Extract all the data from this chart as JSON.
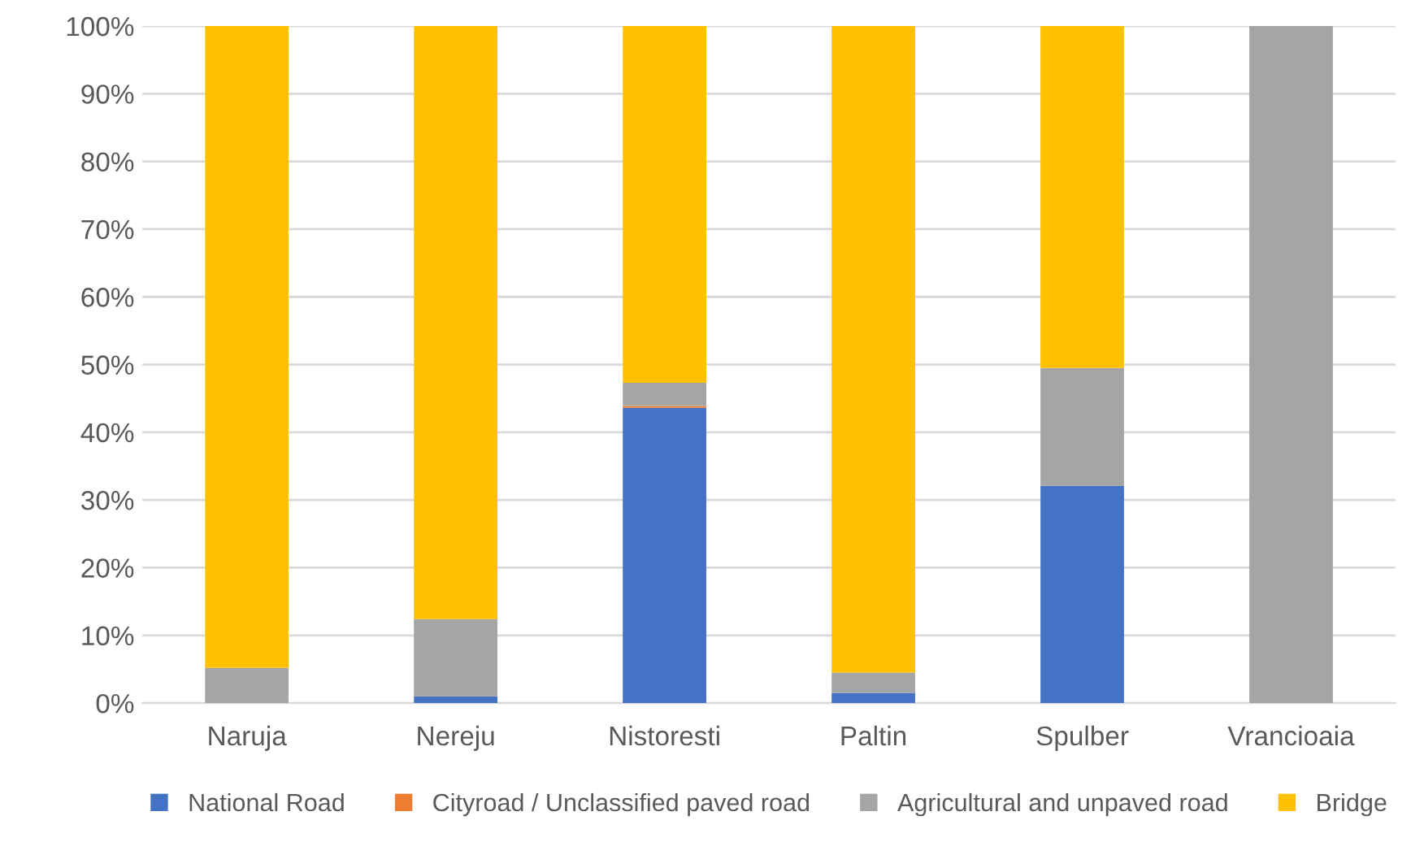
{
  "chart_data": {
    "type": "bar",
    "stacked": true,
    "categories": [
      "Naruja",
      "Nereju",
      "Nistoresti",
      "Paltin",
      "Spulber",
      "Vrancioaia"
    ],
    "series": [
      {
        "name": "National Road",
        "color": "#4472c4",
        "values": [
          0,
          1.0,
          43.6,
          1.5,
          32.1,
          0
        ]
      },
      {
        "name": "Cityroad / Unclassified paved road",
        "color": "#ed7d31",
        "values": [
          0,
          0,
          0.3,
          0,
          0,
          0
        ]
      },
      {
        "name": "Agricultural and unpaved road",
        "color": "#a5a5a5",
        "values": [
          5.2,
          11.4,
          3.4,
          3.0,
          17.4,
          100
        ]
      },
      {
        "name": "Bridge",
        "color": "#ffc000",
        "values": [
          94.8,
          87.6,
          52.7,
          95.5,
          50.5,
          0
        ]
      }
    ],
    "ylim": [
      0,
      100
    ],
    "yticks": [
      {
        "value": 0,
        "label": "0%"
      },
      {
        "value": 10,
        "label": "10%"
      },
      {
        "value": 20,
        "label": "20%"
      },
      {
        "value": 30,
        "label": "30%"
      },
      {
        "value": 40,
        "label": "40%"
      },
      {
        "value": 50,
        "label": "50%"
      },
      {
        "value": 60,
        "label": "60%"
      },
      {
        "value": 70,
        "label": "70%"
      },
      {
        "value": 80,
        "label": "80%"
      },
      {
        "value": 90,
        "label": "90%"
      },
      {
        "value": 100,
        "label": "100%"
      }
    ],
    "grid": "y",
    "legend": "bottom"
  }
}
